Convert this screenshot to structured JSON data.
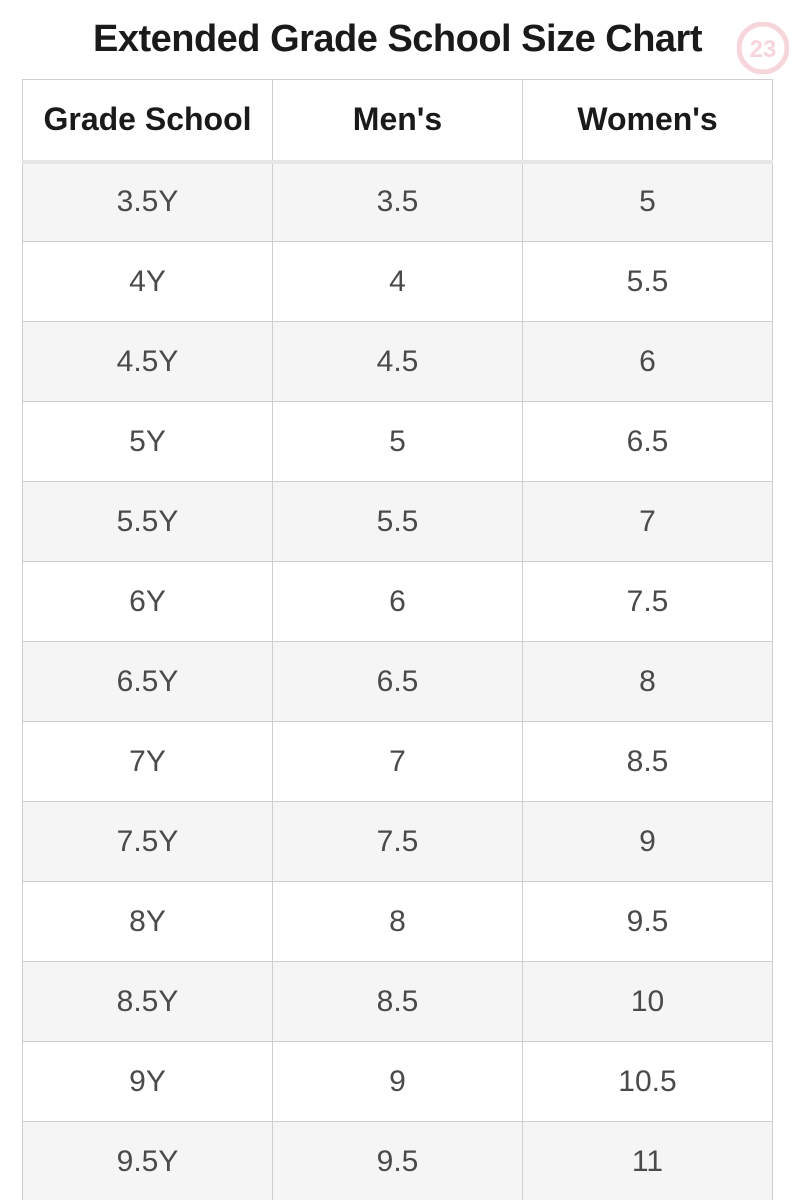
{
  "title": "Extended Grade School Size Chart",
  "logo": {
    "text": "23",
    "circle_fill": "#ffffff",
    "circle_stroke": "#f7d6db",
    "text_fill": "#f7d6db"
  },
  "table": {
    "type": "table",
    "border_color": "#cfcfcf",
    "header_bg": "#ffffff",
    "header_underline": "#e6e6e6",
    "row_odd_bg": "#f5f5f5",
    "row_even_bg": "#ffffff",
    "header_fontsize": 32,
    "cell_fontsize": 30,
    "text_color": "#4a4a4a",
    "columns": [
      "Grade School",
      "Men's",
      "Women's"
    ],
    "rows": [
      [
        "3.5Y",
        "3.5",
        "5"
      ],
      [
        "4Y",
        "4",
        "5.5"
      ],
      [
        "4.5Y",
        "4.5",
        "6"
      ],
      [
        "5Y",
        "5",
        "6.5"
      ],
      [
        "5.5Y",
        "5.5",
        "7"
      ],
      [
        "6Y",
        "6",
        "7.5"
      ],
      [
        "6.5Y",
        "6.5",
        "8"
      ],
      [
        "7Y",
        "7",
        "8.5"
      ],
      [
        "7.5Y",
        "7.5",
        "9"
      ],
      [
        "8Y",
        "8",
        "9.5"
      ],
      [
        "8.5Y",
        "8.5",
        "10"
      ],
      [
        "9Y",
        "9",
        "10.5"
      ],
      [
        "9.5Y",
        "9.5",
        "11"
      ]
    ]
  }
}
